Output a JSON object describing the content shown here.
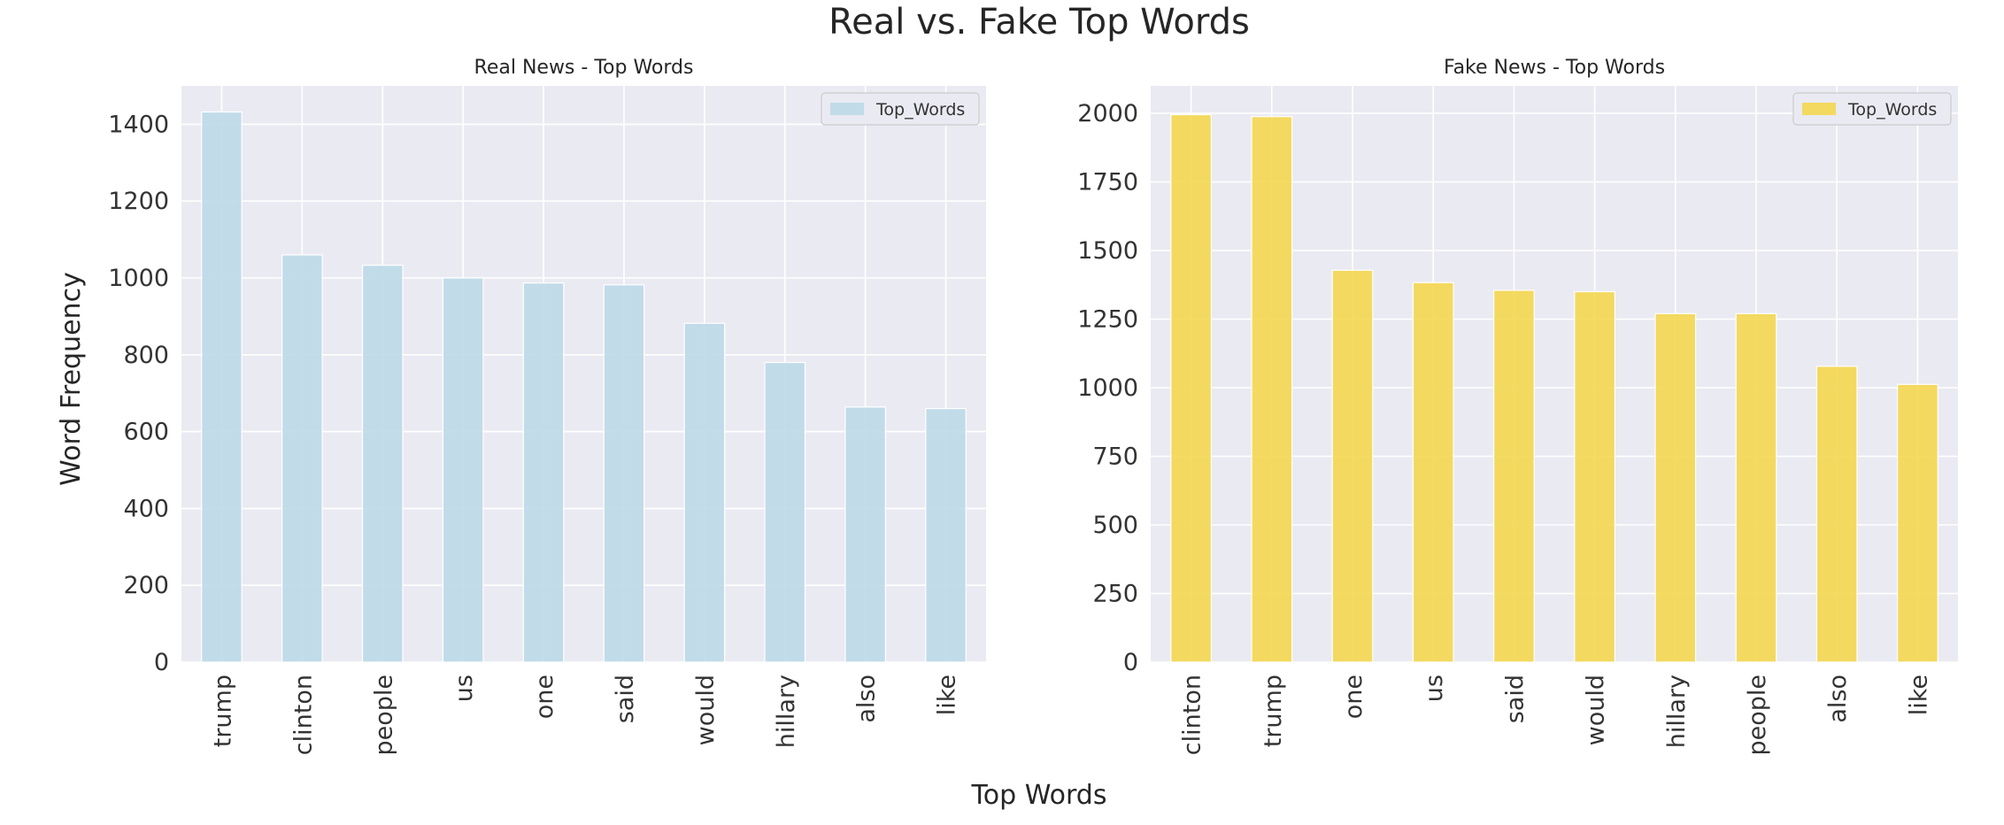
{
  "figure": {
    "title": "Real vs. Fake Top Words",
    "xlabel": "Top Words",
    "ylabel": "Word Frequency"
  },
  "chart_data": [
    {
      "type": "bar",
      "title": "Real News - Top Words",
      "categories": [
        "trump",
        "clinton",
        "people",
        "us",
        "one",
        "said",
        "would",
        "hillary",
        "also",
        "like"
      ],
      "series": [
        {
          "name": "Top_Words",
          "values": [
            1432,
            1060,
            1033,
            1000,
            987,
            982,
            882,
            780,
            664,
            660
          ],
          "color": "#bcd9e8"
        }
      ],
      "ylim": [
        0,
        1500
      ],
      "yticks": [
        0,
        200,
        400,
        600,
        800,
        1000,
        1200,
        1400
      ],
      "grid": true,
      "legend": "top-right"
    },
    {
      "type": "bar",
      "title": "Fake News - Top Words",
      "categories": [
        "clinton",
        "trump",
        "one",
        "us",
        "said",
        "would",
        "hillary",
        "people",
        "also",
        "like"
      ],
      "series": [
        {
          "name": "Top_Words",
          "values": [
            1995,
            1988,
            1428,
            1383,
            1355,
            1350,
            1270,
            1270,
            1078,
            1012
          ],
          "color": "#f4d750"
        }
      ],
      "ylim": [
        0,
        2100
      ],
      "yticks": [
        0,
        250,
        500,
        750,
        1000,
        1250,
        1500,
        1750,
        2000
      ],
      "grid": true,
      "legend": "top-right"
    }
  ]
}
